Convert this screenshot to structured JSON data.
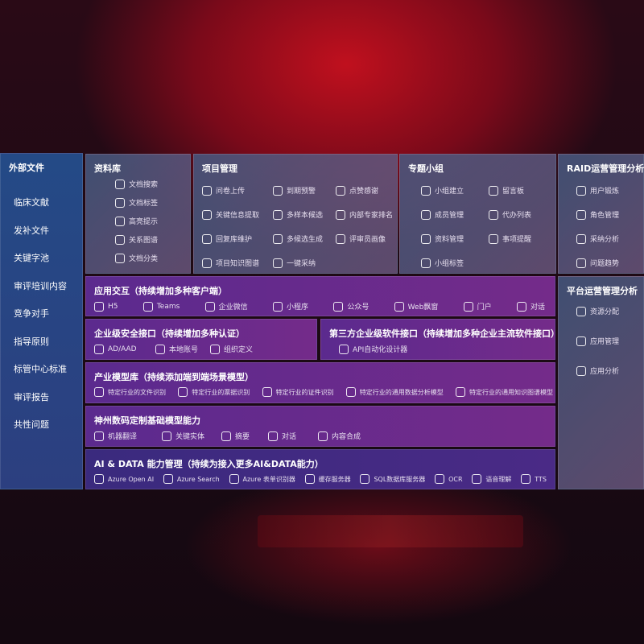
{
  "sidebar": {
    "title": "外部文件",
    "items": [
      "临床文献",
      "发补文件",
      "关键字池",
      "审评培训内容",
      "竞争对手",
      "指导原则",
      "标管中心标准",
      "审评报告",
      "共性问题"
    ]
  },
  "library": {
    "title": "资料库",
    "items": [
      "文档搜索",
      "文档标签",
      "高亮提示",
      "关系图谱",
      "文档分类"
    ]
  },
  "project": {
    "title": "项目管理",
    "items": [
      "问卷上传",
      "到期预警",
      "点赞感谢",
      "关键信息提取",
      "多样本候选",
      "内部专家排名",
      "回复库维护",
      "多候选生成",
      "评审员画像",
      "项目知识图谱",
      "一键采纳"
    ]
  },
  "group": {
    "title": "专题小组",
    "items": [
      "小组建立",
      "留言板",
      "成员管理",
      "代办列表",
      "资料管理",
      "事项提醒",
      "小组标签"
    ]
  },
  "raid": {
    "title": "RAID运营管理分析",
    "items": [
      "用户锻炼",
      "角色管理",
      "采纳分析",
      "问题趋势"
    ]
  },
  "platform": {
    "title": "平台运营管理分析",
    "items": [
      "资源分配",
      "应用管理",
      "应用分析"
    ]
  },
  "app": {
    "title": "应用交互（持续增加多种客户端）",
    "items": [
      "H5",
      "Teams",
      "企业微信",
      "小程序",
      "公众号",
      "Web飘窗",
      "门户",
      "对话"
    ]
  },
  "security": {
    "title": "企业级安全接口（持续增加多种认证）",
    "items": [
      "AD/AAD",
      "本地账号",
      "组织定义"
    ]
  },
  "thirdparty": {
    "title": "第三方企业级软件接口（持续增加多种企业主流软件接口）",
    "items": [
      "API自动化设计器"
    ]
  },
  "industry": {
    "title": "产业模型库（持续添加端到端场景模型）",
    "items": [
      "特定行业的文件识别",
      "特定行业的票据识别",
      "特定行业的证件识别",
      "特定行业的通用数据分析模型",
      "特定行业的通用知识图谱模型"
    ]
  },
  "base": {
    "title": "神州数码定制基础模型能力",
    "items": [
      "机器翻译",
      "关键实体",
      "摘要",
      "对话",
      "内容合成"
    ]
  },
  "ai": {
    "title": "AI & DATA 能力管理（持续为接入更多AI&DATA能力）",
    "items": [
      "Azure Open AI",
      "Azure Search",
      "Azure 表单识别器",
      "缓存服务器",
      "SQL数据库服务器",
      "OCR",
      "语音理解",
      "TTS"
    ]
  }
}
